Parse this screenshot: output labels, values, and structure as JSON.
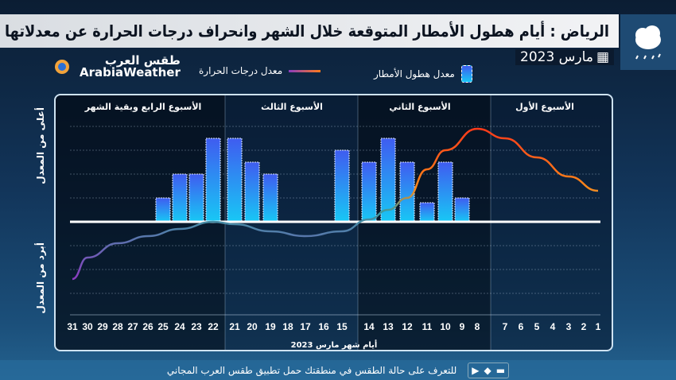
{
  "header": {
    "title": "الرياض : أيام هطول الأمطار المتوقعة خلال الشهر وانحراف درجات الحرارة عن معدلاتها",
    "date": "مارس 2023",
    "weather_icon": "cloud-rain-icon"
  },
  "logo": {
    "arabic": "طقس العرب",
    "english": "ArabiaWeather"
  },
  "legend": {
    "rain": "معدل هطول الأمطار",
    "temp": "معدل درجات الحرارة"
  },
  "footer": {
    "text": "للتعرف على حالة الطقس في منطقتك حمل تطبيق طقس العرب المجاني"
  },
  "colors": {
    "bar_top": "#3f5cf0",
    "bar_bottom": "#18c8f5",
    "temp_hot": "#ff3a1a",
    "temp_cold": "#8a3cc0"
  },
  "chart_data": {
    "type": "bar+line",
    "title": "أيام هطول الأمطار المتوقعة وانحراف درجات الحرارة",
    "xlabel": "أيام شهر مارس 2023",
    "ylabel_top": "أعلى من المعدل",
    "ylabel_bottom": "أبرد من المعدل",
    "weeks": [
      "الأسبوع الأول",
      "الأسبوع الثاني",
      "الأسبوع الثالث",
      "الأسبوع الرابع وبقية الشهر"
    ],
    "days": [
      1,
      2,
      3,
      4,
      5,
      6,
      7,
      8,
      9,
      10,
      11,
      12,
      13,
      14,
      15,
      16,
      17,
      18,
      19,
      20,
      21,
      22,
      23,
      24,
      25,
      26,
      27,
      28,
      29,
      30,
      31
    ],
    "rain": {
      "9": 1,
      "10": 2.5,
      "11": 0.8,
      "12": 2.5,
      "13": 3.5,
      "14": 2.5,
      "15": 3,
      "19": 2,
      "20": 2.5,
      "21": 3.5,
      "22": 3.5,
      "23": 2,
      "24": 2,
      "25": 1
    },
    "temperature_anomaly": {
      "1": 1.3,
      "3": 1.9,
      "5": 2.7,
      "7": 3.5,
      "8": 3.9,
      "10": 3.0,
      "11": 2.2,
      "12": 1.0,
      "13": 0.5,
      "14": 0.1,
      "15": -0.4,
      "17": -0.6,
      "19": -0.4,
      "21": -0.1,
      "22": 0,
      "24": -0.3,
      "26": -0.6,
      "28": -0.9,
      "30": -1.5,
      "31": -2.4
    },
    "ylim": [
      -4,
      4.5
    ]
  }
}
